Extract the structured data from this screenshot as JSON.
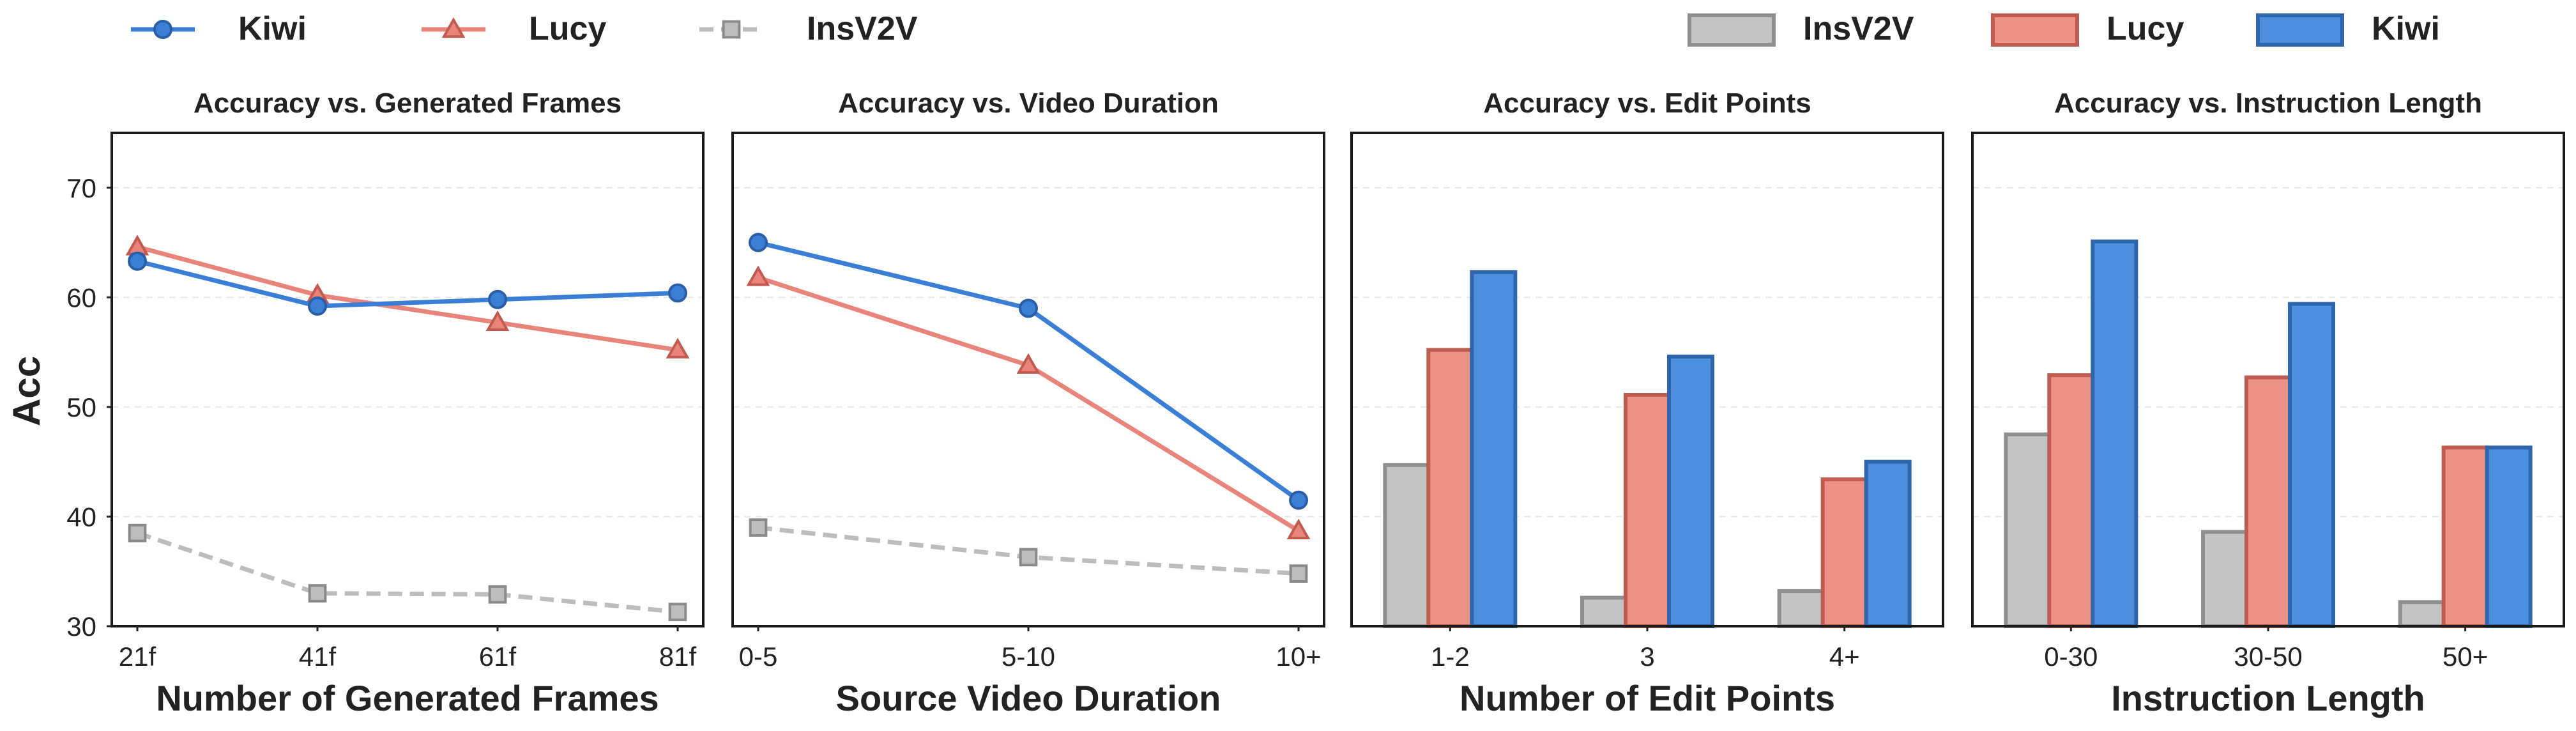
{
  "legend_lines": {
    "items": [
      {
        "label": "Kiwi",
        "marker": "circle",
        "color": "#3a7fd5",
        "edge": "#2a5fa8",
        "dash": false
      },
      {
        "label": "Lucy",
        "marker": "triangle",
        "color": "#e8847a",
        "edge": "#c25a50",
        "dash": false
      },
      {
        "label": "InsV2V",
        "marker": "square",
        "color": "#bdbdbd",
        "edge": "#8a8a8a",
        "dash": true
      }
    ]
  },
  "legend_bars": {
    "items": [
      {
        "label": "InsV2V",
        "color": "#c4c4c4",
        "edge": "#8f8f8f"
      },
      {
        "label": "Lucy",
        "color": "#ec9289",
        "edge": "#c05b52"
      },
      {
        "label": "Kiwi",
        "color": "#4c8fdf",
        "edge": "#2e65ad"
      }
    ]
  },
  "y_axis_label": "Acc",
  "chart_data": [
    {
      "type": "line",
      "title": "Accuracy vs. Generated Frames",
      "xlabel": "Number of Generated Frames",
      "ylabel": "Acc",
      "categories": [
        "21f",
        "41f",
        "61f",
        "81f"
      ],
      "ylim": [
        30,
        75
      ],
      "yticks": [
        30,
        40,
        50,
        60,
        70
      ],
      "grid": "horizontal-dashed",
      "series": [
        {
          "name": "Kiwi",
          "values": [
            63.3,
            59.2,
            59.8,
            60.4
          ]
        },
        {
          "name": "Lucy",
          "values": [
            64.6,
            60.2,
            57.7,
            55.2
          ]
        },
        {
          "name": "InsV2V",
          "values": [
            38.5,
            33.0,
            32.9,
            31.3
          ]
        }
      ]
    },
    {
      "type": "line",
      "title": "Accuracy vs. Video Duration",
      "xlabel": "Source Video Duration",
      "ylabel": "",
      "categories": [
        "0-5",
        "5-10",
        "10+"
      ],
      "ylim": [
        30,
        75
      ],
      "grid": "horizontal-dashed",
      "series": [
        {
          "name": "Kiwi",
          "values": [
            65.0,
            59.0,
            41.5
          ]
        },
        {
          "name": "Lucy",
          "values": [
            61.8,
            53.8,
            38.7
          ]
        },
        {
          "name": "InsV2V",
          "values": [
            39.0,
            36.3,
            34.8
          ]
        }
      ]
    },
    {
      "type": "bar",
      "title": "Accuracy vs. Edit Points",
      "xlabel": "Number of Edit Points",
      "ylabel": "",
      "categories": [
        "1-2",
        "3",
        "4+"
      ],
      "ylim": [
        30,
        75
      ],
      "grid": "horizontal-dashed",
      "series": [
        {
          "name": "InsV2V",
          "values": [
            44.7,
            32.6,
            33.2
          ]
        },
        {
          "name": "Lucy",
          "values": [
            55.2,
            51.1,
            43.4
          ]
        },
        {
          "name": "Kiwi",
          "values": [
            62.3,
            54.6,
            45.0
          ]
        }
      ]
    },
    {
      "type": "bar",
      "title": "Accuracy vs. Instruction Length",
      "xlabel": "Instruction Length",
      "ylabel": "",
      "categories": [
        "0-30",
        "30-50",
        "50+"
      ],
      "ylim": [
        30,
        75
      ],
      "grid": "horizontal-dashed",
      "series": [
        {
          "name": "InsV2V",
          "values": [
            47.5,
            38.6,
            32.2
          ]
        },
        {
          "name": "Lucy",
          "values": [
            52.9,
            52.7,
            46.3
          ]
        },
        {
          "name": "Kiwi",
          "values": [
            65.1,
            59.4,
            46.3
          ]
        }
      ]
    }
  ]
}
